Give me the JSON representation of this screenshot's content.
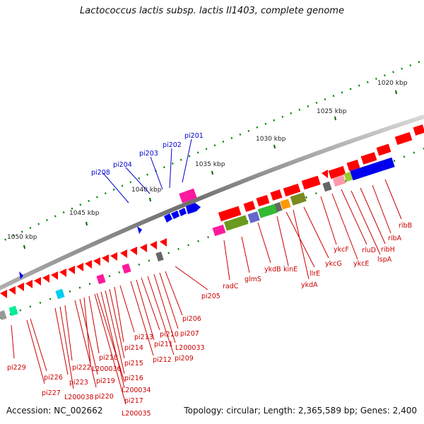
{
  "title": "Lactococcus lactis subsp. lactis Il1403, complete genome",
  "footer": {
    "accession": "Accession: NC_002662",
    "summary": "Topology: circular; Length: 2,365,589 bp; Genes: 2,400"
  },
  "colors": {
    "backbone": "#808080",
    "gene": "#ff0000",
    "rna": "#0000ff",
    "tick_major": "#006600",
    "tick_minor": "#009900",
    "label_gene": "#cc0000",
    "label_rna": "#0000cc"
  },
  "scale_labels": [
    "1020 kbp",
    "1025 kbp",
    "1030 kbp",
    "1035 kbp",
    "1040 kbp",
    "1045 kbp",
    "1050 kbp"
  ],
  "upper_labels": [
    "pi201",
    "pi202",
    "pi203",
    "pi204",
    "pi208"
  ],
  "right_labels": [
    "ribB",
    "ribA",
    "ribH",
    "lspA",
    "rluD",
    "ykcE",
    "ykcF",
    "ykcG",
    "ykdA",
    "llrE",
    "kinE",
    "ykdB",
    "glmS",
    "radC",
    "pi205"
  ],
  "lower_labels": [
    "pi206",
    "pi207",
    "L200033",
    "pi209",
    "pi210",
    "pi211",
    "pi212",
    "pi213",
    "pi214",
    "pi215",
    "pi216",
    "pi217",
    "L200034",
    "L200035",
    "pi218",
    "L200036",
    "pi219",
    "pi220",
    "pi222",
    "L200038",
    "pi223",
    "pi226",
    "pi227",
    "pi229"
  ]
}
